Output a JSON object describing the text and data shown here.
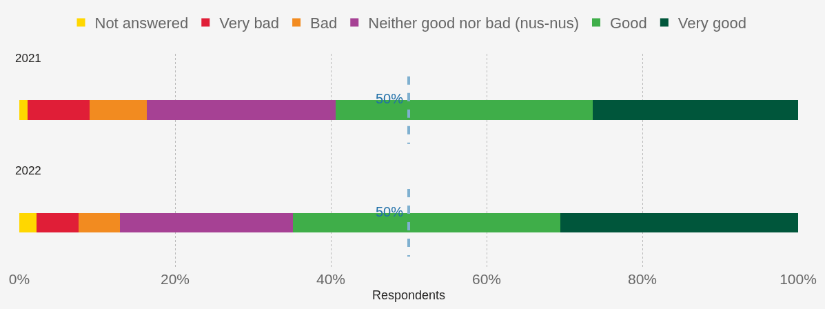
{
  "chart_data": {
    "type": "bar",
    "orientation": "horizontal",
    "stacked": true,
    "categories": [
      "2021",
      "2022"
    ],
    "xlabel": "Respondents",
    "series": [
      {
        "name": "Not answered",
        "color": "#ffd700",
        "values": [
          1.1,
          2.2
        ]
      },
      {
        "name": "Very bad",
        "color": "#e01e37",
        "values": [
          7.9,
          5.4
        ]
      },
      {
        "name": "Bad",
        "color": "#f28b20",
        "values": [
          7.4,
          5.3
        ]
      },
      {
        "name": "Neither good nor bad (nus-nus)",
        "color": "#a64194",
        "values": [
          24.2,
          22.2
        ]
      },
      {
        "name": "Good",
        "color": "#3fae49",
        "values": [
          33.0,
          34.4
        ]
      },
      {
        "name": "Very good",
        "color": "#00563b",
        "values": [
          26.4,
          30.5
        ]
      }
    ],
    "xlim": [
      0,
      100
    ],
    "xticks": [
      {
        "value": 0,
        "label": "0%"
      },
      {
        "value": 20,
        "label": "20%"
      },
      {
        "value": 40,
        "label": "40%"
      },
      {
        "value": 60,
        "label": "60%"
      },
      {
        "value": 80,
        "label": "80%"
      },
      {
        "value": 100,
        "label": "100%"
      }
    ],
    "grid": "x",
    "legend": "top",
    "ref_lines": [
      {
        "axis": "x",
        "value": 50,
        "label": "50%",
        "color": "#7fb0d0",
        "line_style": "dashed"
      }
    ]
  }
}
